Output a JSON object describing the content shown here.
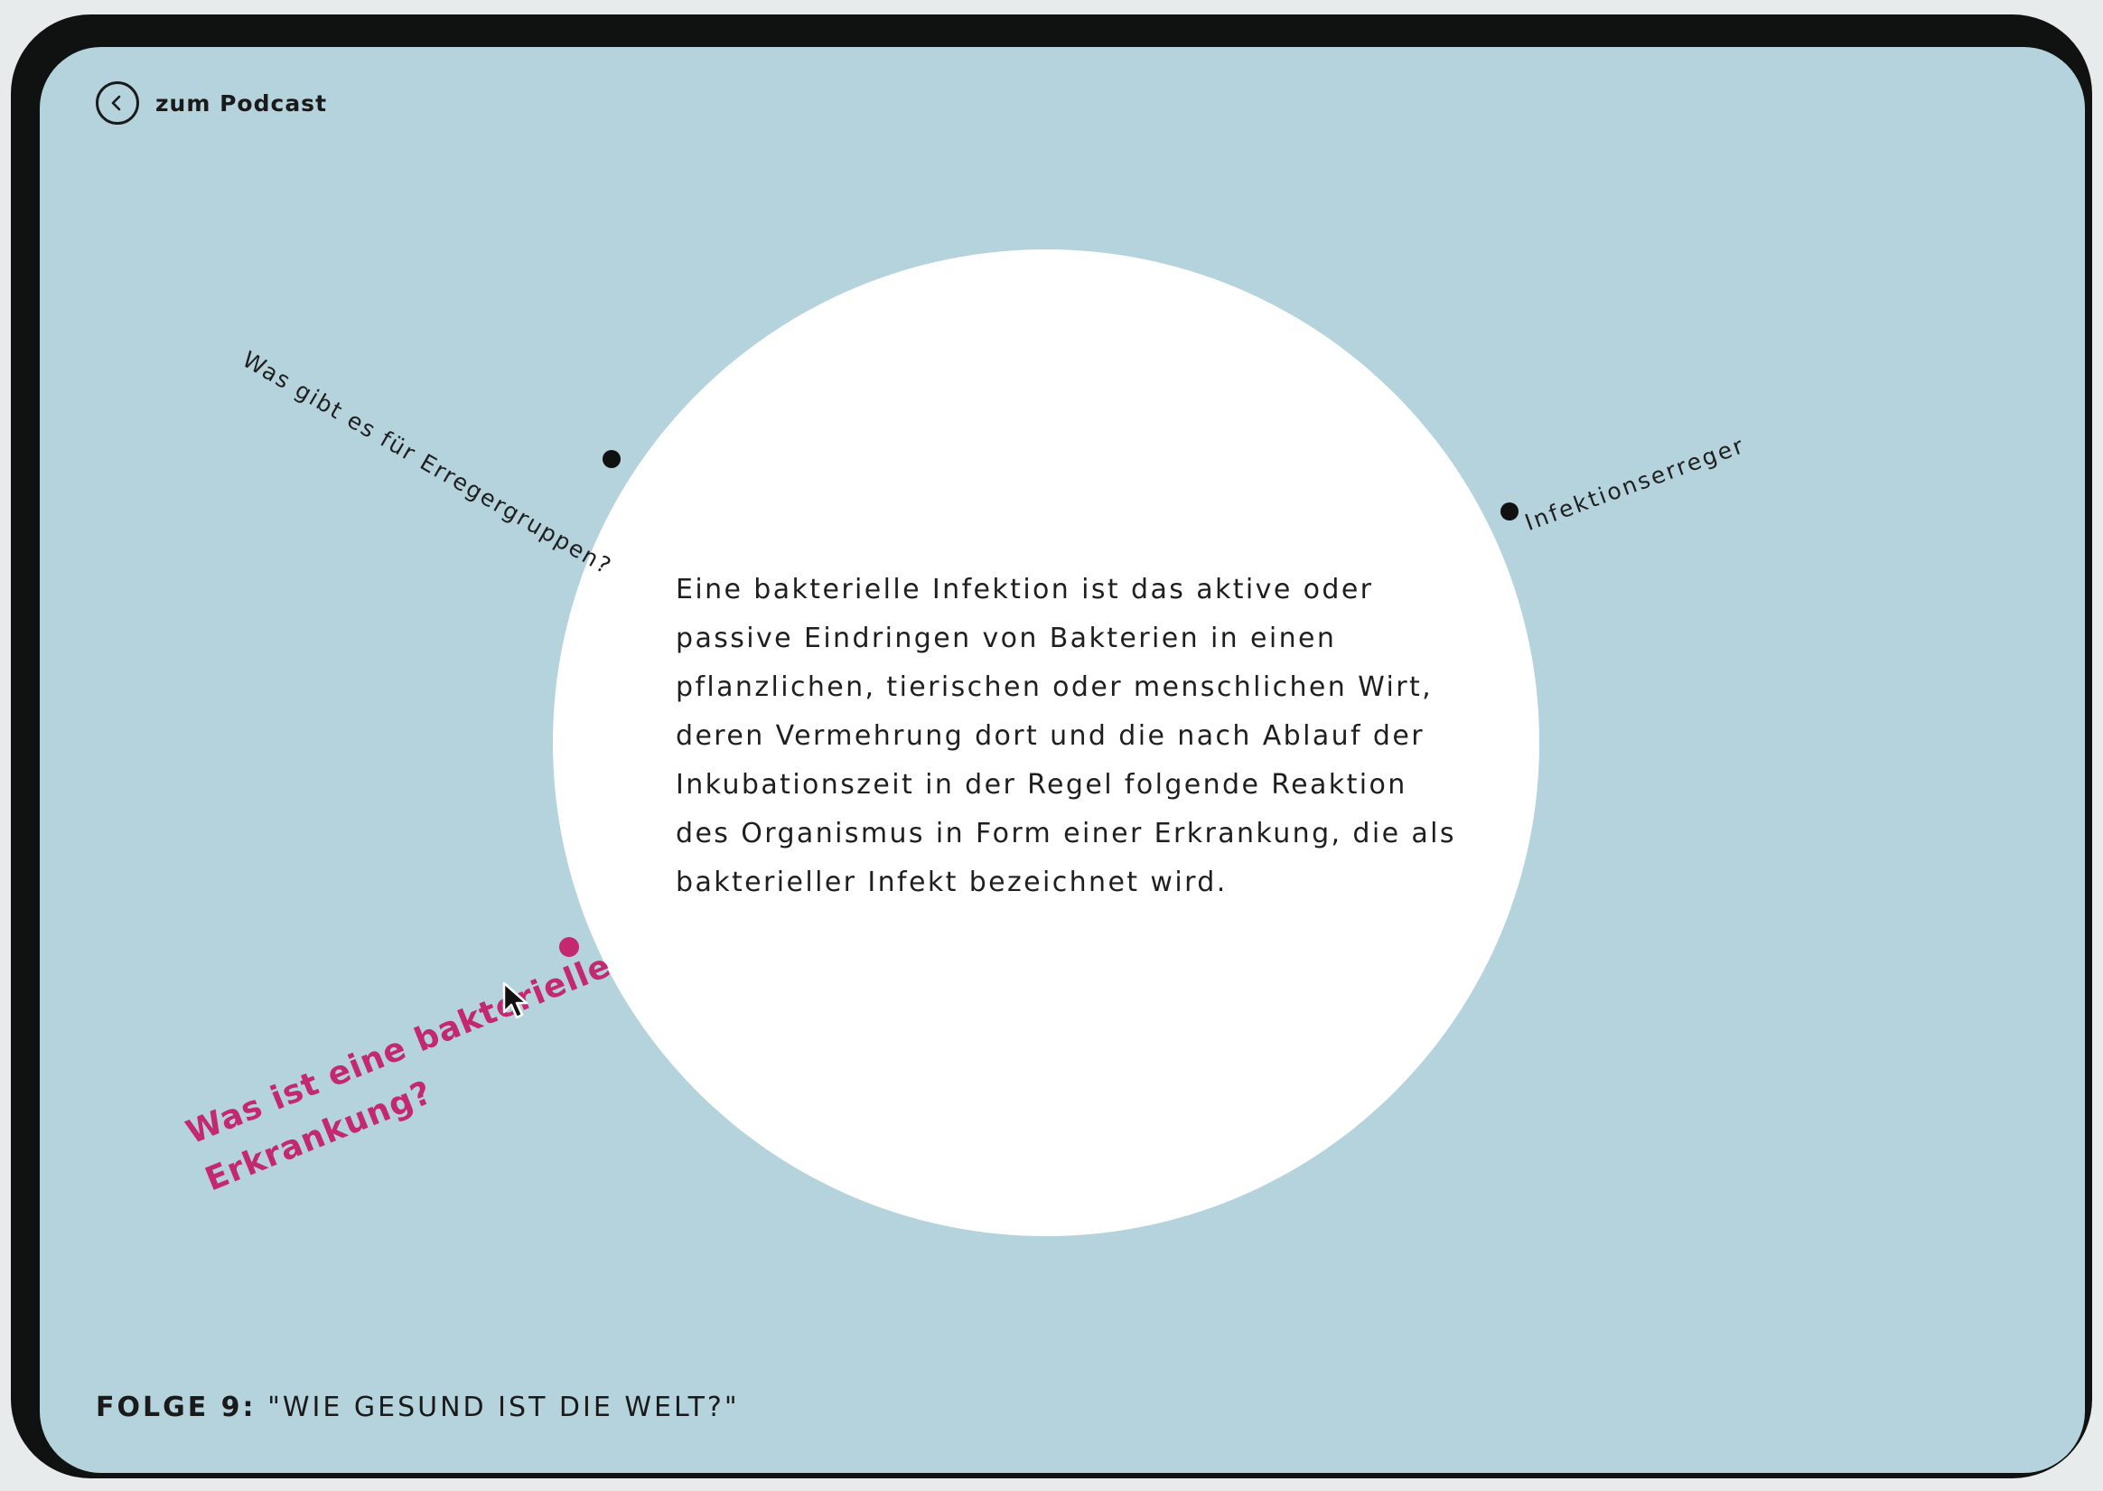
{
  "nav": {
    "back_label": "zum Podcast",
    "back_icon": "chevron-left-icon"
  },
  "content": {
    "text": "Eine bakterielle Infektion ist das aktive oder\npassive Eindringen von Bakterien in einen\npflanzlichen, tierischen oder menschlichen Wirt,\nderen Vermehrung dort und die nach Ablauf der\nInkubationszeit in der Regel folgende Reaktion\ndes Organismus in Form einer Erkrankung, die als\nbakterieller Infekt bezeichnet wird."
  },
  "topics": [
    {
      "label": "Was gibt es für Erregergruppen?",
      "active": false
    },
    {
      "label": "Infektionserreger",
      "active": false
    },
    {
      "label": "Was ist eine bakterielle\nErkrankung?",
      "active": true
    }
  ],
  "footer": {
    "episode": "FOLGE 9:",
    "title": "\"WIE GESUND IST DIE WELT?\""
  },
  "colors": {
    "background": "#b5d3dc",
    "circle": "#ffffff",
    "frame": "#101111",
    "active": "#c4286f",
    "text": "#1f1f1f"
  }
}
